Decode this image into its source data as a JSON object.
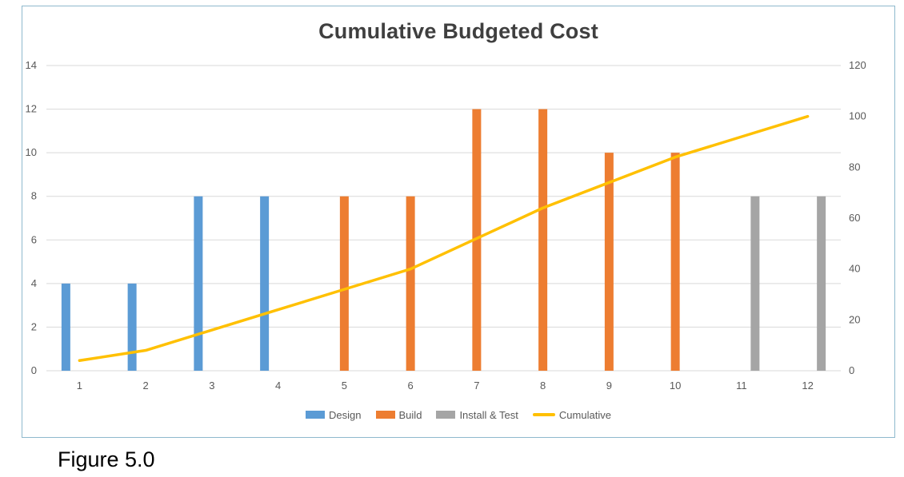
{
  "figure_caption": "Figure 5.0",
  "chart_data": {
    "type": "combo",
    "subtype": "clustered-bars-with-line",
    "title": "Cumulative Budgeted Cost",
    "categories": [
      "1",
      "2",
      "3",
      "4",
      "5",
      "6",
      "7",
      "8",
      "9",
      "10",
      "11",
      "12"
    ],
    "bar_series": [
      {
        "name": "Design",
        "color": "#5B9BD5",
        "values": [
          4,
          4,
          8,
          8,
          null,
          null,
          null,
          null,
          null,
          null,
          null,
          null
        ]
      },
      {
        "name": "Build",
        "color": "#ED7D31",
        "values": [
          null,
          null,
          null,
          null,
          8,
          8,
          12,
          12,
          10,
          10,
          null,
          null
        ]
      },
      {
        "name": "Install & Test",
        "color": "#A5A5A5",
        "values": [
          null,
          null,
          null,
          null,
          null,
          null,
          null,
          null,
          null,
          null,
          8,
          8
        ]
      }
    ],
    "line_series": [
      {
        "name": "Cumulative",
        "color": "#FFC000",
        "axis": "right",
        "values": [
          4,
          8,
          16,
          24,
          32,
          40,
          52,
          64,
          74,
          84,
          92,
          100
        ]
      }
    ],
    "left_axis": {
      "min": 0,
      "max": 14,
      "ticks": [
        0,
        2,
        4,
        6,
        8,
        10,
        12,
        14
      ]
    },
    "right_axis": {
      "min": 0,
      "max": 120,
      "ticks": [
        0,
        20,
        40,
        60,
        80,
        100,
        120
      ]
    },
    "grid": true,
    "gridline_color": "#D9D9D9",
    "tick_label_color": "#595959",
    "legend_position": "bottom",
    "frame_border_color": "#8eb9cd"
  }
}
